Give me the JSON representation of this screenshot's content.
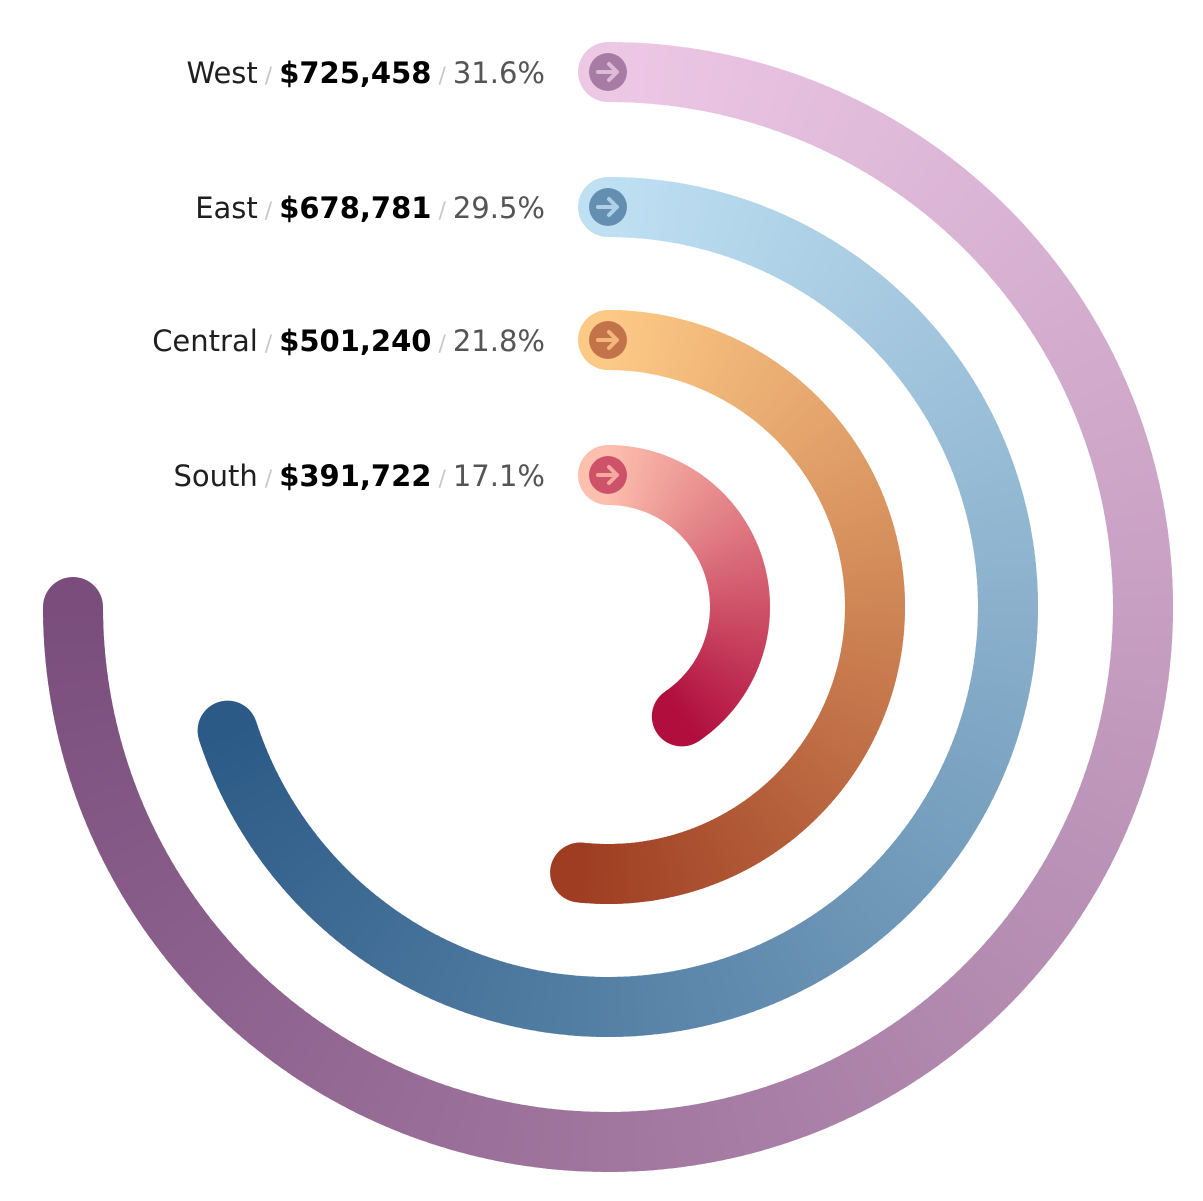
{
  "chart_data": {
    "type": "radial-bar",
    "title": "",
    "separator": "/",
    "series": [
      {
        "name": "West",
        "value": 725458,
        "value_label": "$725,458",
        "percent": 31.6,
        "percent_label": "31.6%",
        "arc_degrees": 270,
        "color_start": "#edc8e5",
        "color_end": "#7a4d7c"
      },
      {
        "name": "East",
        "value": 678781,
        "value_label": "$678,781",
        "percent": 29.5,
        "percent_label": "29.5%",
        "arc_degrees": 252,
        "color_start": "#bfe0f3",
        "color_end": "#2b5a86"
      },
      {
        "name": "Central",
        "value": 501240,
        "value_label": "$501,240",
        "percent": 21.8,
        "percent_label": "21.8%",
        "arc_degrees": 186,
        "color_start": "#fdc986",
        "color_end": "#9e3d22"
      },
      {
        "name": "South",
        "value": 391722,
        "value_label": "$391,722",
        "percent": 17.1,
        "percent_label": "17.1%",
        "arc_degrees": 146,
        "color_start": "#fdbfae",
        "color_end": "#b10e3e"
      }
    ],
    "legend_icon": "arrow-right-circle-icon"
  }
}
